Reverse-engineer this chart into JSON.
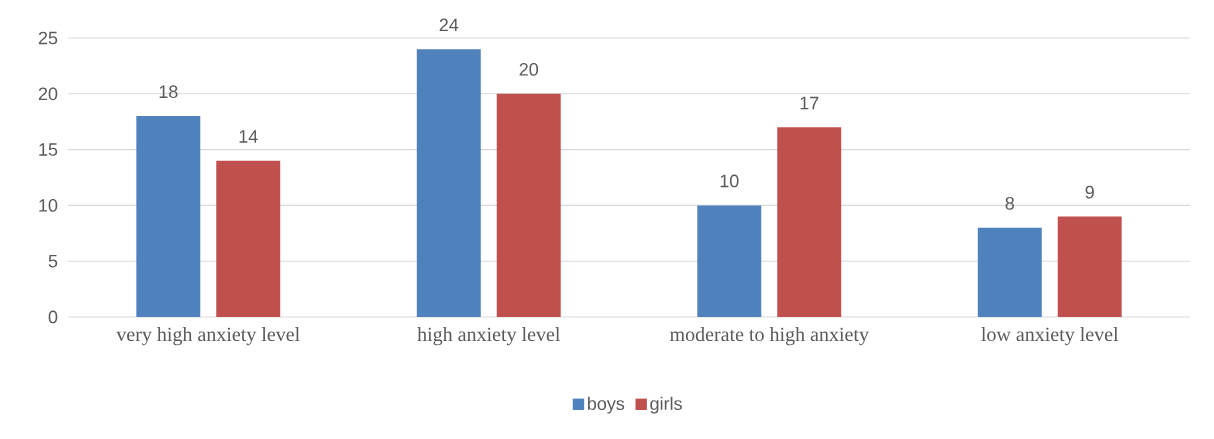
{
  "chart_data": {
    "type": "bar",
    "categories": [
      "very high anxiety level",
      "high anxiety level",
      "moderate to high anxiety",
      "low anxiety level"
    ],
    "series": [
      {
        "name": "boys",
        "color": "#4f81bd",
        "values": [
          18,
          24,
          10,
          8
        ]
      },
      {
        "name": "girls",
        "color": "#c0504d",
        "values": [
          14,
          20,
          17,
          9
        ]
      }
    ],
    "ylim": [
      0,
      25
    ],
    "yticks": [
      0,
      5,
      10,
      15,
      20,
      25
    ],
    "grid": "y",
    "legend": "bottom",
    "data_labels": true
  }
}
